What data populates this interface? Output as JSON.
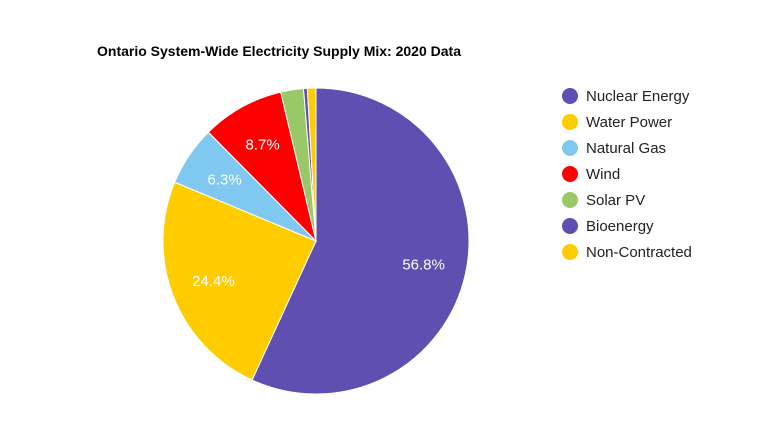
{
  "chart_data": {
    "type": "pie",
    "title": "Ontario System-Wide Electricity Supply Mix: 2020 Data",
    "categories": [
      "Nuclear Energy",
      "Water Power",
      "Natural Gas",
      "Wind",
      "Solar PV",
      "Bioenergy",
      "Non-Contracted"
    ],
    "values": [
      56.8,
      24.4,
      6.3,
      8.7,
      2.4,
      0.4,
      0.9
    ],
    "data_labels": [
      "56.8%",
      "24.4%",
      "6.3%",
      "8.7%",
      "",
      "",
      ""
    ],
    "colors": [
      "#5f4fb0",
      "#ffcc00",
      "#7fc8ef",
      "#ff0000",
      "#99c966",
      "#5f4fb0",
      "#ffcc00"
    ],
    "legend_position": "right"
  }
}
